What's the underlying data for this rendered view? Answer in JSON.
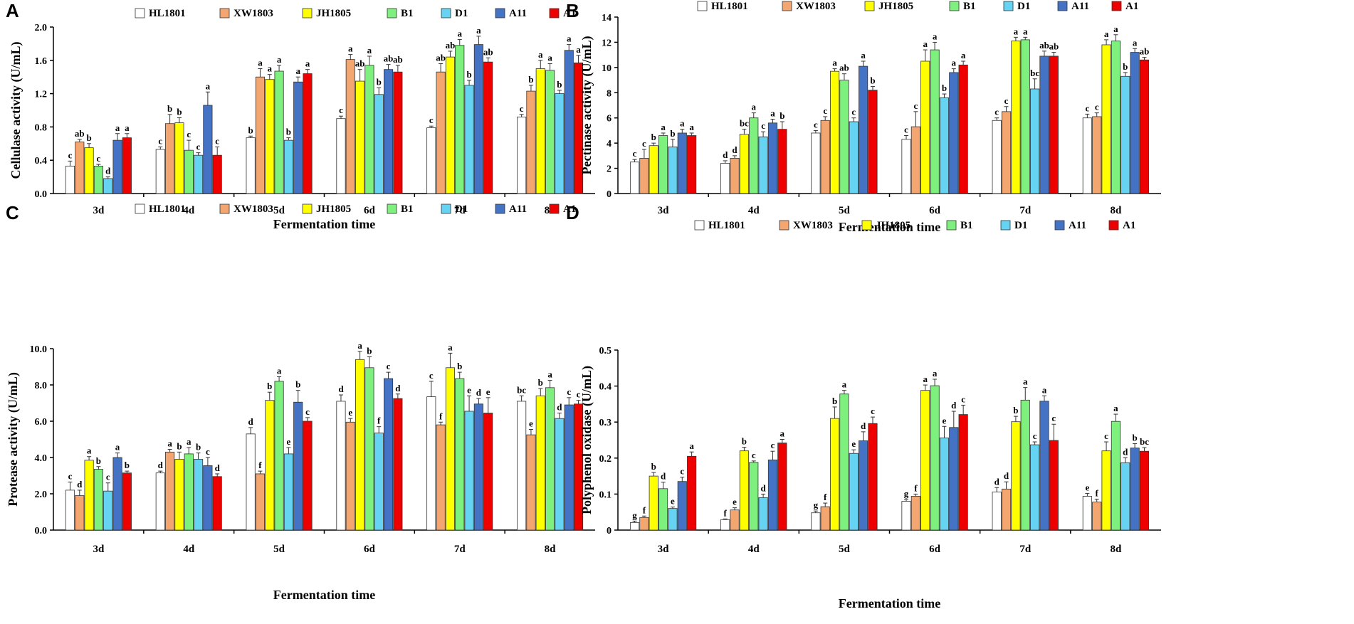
{
  "series_names": [
    "HL1801",
    "XW1803",
    "JH1805",
    "B1",
    "D1",
    "A11",
    "A1"
  ],
  "series_colors": [
    "#ffffff",
    "#f4a671",
    "#ffff00",
    "#7ef07e",
    "#66d3f2",
    "#4472c4",
    "#ee0000"
  ],
  "chart_data": [
    {
      "type": "bar",
      "panel_label": "A",
      "title": "",
      "xlabel": "Fermentation time",
      "ylabel": "Cellulase activity (U/mL)",
      "categories": [
        "3d",
        "4d",
        "5d",
        "6d",
        "7d",
        "8d"
      ],
      "ylim": [
        0,
        2.0
      ],
      "yticks": [
        "0.0",
        "0.4",
        "0.8",
        "1.2",
        "1.6",
        "2.0"
      ],
      "series": [
        {
          "name": "HL1801",
          "values": [
            0.33,
            0.53,
            0.67,
            0.9,
            0.79,
            0.92
          ],
          "errors": [
            0.06,
            0.03,
            0.02,
            0.03,
            0.02,
            0.03
          ],
          "letters": [
            "c",
            "c",
            "b",
            "c",
            "c",
            "c"
          ]
        },
        {
          "name": "XW1803",
          "values": [
            0.62,
            0.84,
            1.4,
            1.61,
            1.46,
            1.23
          ],
          "errors": [
            0.03,
            0.11,
            0.1,
            0.06,
            0.1,
            0.07
          ],
          "letters": [
            "ab",
            "b",
            "a",
            "a",
            "ab",
            "b"
          ]
        },
        {
          "name": "JH1805",
          "values": [
            0.55,
            0.85,
            1.37,
            1.35,
            1.64,
            1.5
          ],
          "errors": [
            0.05,
            0.06,
            0.06,
            0.14,
            0.07,
            0.1
          ],
          "letters": [
            "b",
            "b",
            "a",
            "ab",
            "ab",
            "a"
          ]
        },
        {
          "name": "B1",
          "values": [
            0.33,
            0.52,
            1.47,
            1.54,
            1.78,
            1.48
          ],
          "errors": [
            0.02,
            0.12,
            0.07,
            0.11,
            0.07,
            0.08
          ],
          "letters": [
            "c",
            "c",
            "a",
            "a",
            "a",
            "a"
          ]
        },
        {
          "name": "D1",
          "values": [
            0.18,
            0.46,
            0.64,
            1.19,
            1.3,
            1.2
          ],
          "errors": [
            0.02,
            0.03,
            0.03,
            0.08,
            0.06,
            0.04
          ],
          "letters": [
            "d",
            "c",
            "b",
            "b",
            "b",
            "b"
          ]
        },
        {
          "name": "A11",
          "values": [
            0.64,
            1.06,
            1.34,
            1.49,
            1.79,
            1.72
          ],
          "errors": [
            0.08,
            0.16,
            0.06,
            0.06,
            0.1,
            0.07
          ],
          "letters": [
            "a",
            "a",
            "a",
            "ab",
            "a",
            "a"
          ]
        },
        {
          "name": "A1",
          "values": [
            0.67,
            0.46,
            1.44,
            1.46,
            1.58,
            1.57
          ],
          "errors": [
            0.05,
            0.1,
            0.05,
            0.08,
            0.05,
            0.09
          ],
          "letters": [
            "a",
            "c",
            "a",
            "ab",
            "ab",
            "a"
          ]
        }
      ]
    },
    {
      "type": "bar",
      "panel_label": "B",
      "title": "",
      "xlabel": "Fermentation time",
      "ylabel": "Pectinase activity (U/mL)",
      "categories": [
        "3d",
        "4d",
        "5d",
        "6d",
        "7d",
        "8d"
      ],
      "ylim": [
        0,
        14
      ],
      "yticks": [
        "0",
        "2",
        "4",
        "6",
        "8",
        "10",
        "12",
        "14"
      ],
      "series": [
        {
          "name": "HL1801",
          "values": [
            2.5,
            2.4,
            4.8,
            4.3,
            5.8,
            6.0
          ],
          "errors": [
            0.2,
            0.2,
            0.2,
            0.3,
            0.2,
            0.3
          ],
          "letters": [
            "c",
            "d",
            "c",
            "c",
            "c",
            "c"
          ]
        },
        {
          "name": "XW1803",
          "values": [
            2.8,
            2.8,
            5.8,
            5.3,
            6.5,
            6.1
          ],
          "errors": [
            0.7,
            0.2,
            0.3,
            1.2,
            0.4,
            0.3
          ],
          "letters": [
            "c",
            "d",
            "c",
            "c",
            "c",
            "c"
          ]
        },
        {
          "name": "JH1805",
          "values": [
            3.8,
            4.7,
            9.7,
            10.5,
            12.1,
            11.8
          ],
          "errors": [
            0.2,
            0.4,
            0.2,
            0.9,
            0.3,
            0.4
          ],
          "letters": [
            "b",
            "bc",
            "a",
            "a",
            "a",
            "a"
          ]
        },
        {
          "name": "B1",
          "values": [
            4.6,
            6.0,
            9.0,
            11.4,
            12.2,
            12.1
          ],
          "errors": [
            0.2,
            0.4,
            0.5,
            0.6,
            0.2,
            0.5
          ],
          "letters": [
            "a",
            "a",
            "ab",
            "a",
            "a",
            "a"
          ]
        },
        {
          "name": "D1",
          "values": [
            3.7,
            4.5,
            5.7,
            7.6,
            8.3,
            9.3
          ],
          "errors": [
            0.6,
            0.4,
            0.3,
            0.3,
            0.8,
            0.3
          ],
          "letters": [
            "b",
            "c",
            "c",
            "b",
            "bc",
            "b"
          ]
        },
        {
          "name": "A11",
          "values": [
            4.8,
            5.6,
            10.1,
            9.6,
            10.9,
            11.2
          ],
          "errors": [
            0.3,
            0.3,
            0.4,
            0.3,
            0.4,
            0.3
          ],
          "letters": [
            "a",
            "a",
            "a",
            "a",
            "ab",
            "a"
          ]
        },
        {
          "name": "A1",
          "values": [
            4.6,
            5.1,
            8.2,
            10.2,
            10.9,
            10.6
          ],
          "errors": [
            0.2,
            0.6,
            0.3,
            0.3,
            0.3,
            0.2
          ],
          "letters": [
            "a",
            "b",
            "b",
            "a",
            "ab",
            "ab"
          ]
        }
      ]
    },
    {
      "type": "bar",
      "panel_label": "C",
      "title": "",
      "xlabel": "Fermentation time",
      "ylabel": "Protease activity (U/mL)",
      "categories": [
        "3d",
        "4d",
        "5d",
        "6d",
        "7d",
        "8d"
      ],
      "ylim": [
        0,
        10
      ],
      "yticks": [
        "0.0",
        "2.0",
        "4.0",
        "6.0",
        "8.0",
        "10.0"
      ],
      "series": [
        {
          "name": "HL1801",
          "values": [
            2.2,
            3.15,
            5.3,
            7.1,
            7.35,
            7.1
          ],
          "errors": [
            0.45,
            0.1,
            0.35,
            0.35,
            0.85,
            0.3
          ],
          "letters": [
            "c",
            "d",
            "d",
            "d",
            "c",
            "bc"
          ]
        },
        {
          "name": "XW1803",
          "values": [
            1.9,
            4.3,
            3.1,
            5.95,
            5.8,
            5.25
          ],
          "errors": [
            0.3,
            0.15,
            0.15,
            0.2,
            0.15,
            0.3
          ],
          "letters": [
            "d",
            "a",
            "f",
            "e",
            "f",
            "e"
          ]
        },
        {
          "name": "JH1805",
          "values": [
            3.85,
            3.9,
            7.15,
            9.4,
            8.95,
            7.4
          ],
          "errors": [
            0.2,
            0.4,
            0.45,
            0.45,
            0.8,
            0.4
          ],
          "letters": [
            "a",
            "b",
            "b",
            "a",
            "a",
            "b"
          ]
        },
        {
          "name": "B1",
          "values": [
            3.35,
            4.2,
            8.2,
            8.95,
            8.35,
            7.85
          ],
          "errors": [
            0.15,
            0.35,
            0.25,
            0.6,
            0.35,
            0.4
          ],
          "letters": [
            "b",
            "a",
            "a",
            "b",
            "b",
            "a"
          ]
        },
        {
          "name": "D1",
          "values": [
            2.15,
            3.9,
            4.2,
            5.35,
            6.55,
            6.15
          ],
          "errors": [
            0.45,
            0.35,
            0.35,
            0.35,
            0.85,
            0.3
          ],
          "letters": [
            "c",
            "b",
            "e",
            "f",
            "e",
            "d"
          ]
        },
        {
          "name": "A11",
          "values": [
            4.0,
            3.55,
            7.05,
            8.35,
            6.95,
            6.9
          ],
          "errors": [
            0.25,
            0.45,
            0.65,
            0.35,
            0.3,
            0.4
          ],
          "letters": [
            "a",
            "c",
            "b",
            "c",
            "d",
            "c"
          ]
        },
        {
          "name": "A1",
          "values": [
            3.15,
            2.95,
            6.0,
            7.25,
            6.45,
            6.95
          ],
          "errors": [
            0.1,
            0.15,
            0.2,
            0.25,
            0.85,
            0.2
          ],
          "letters": [
            "b",
            "d",
            "c",
            "d",
            "e",
            "c"
          ]
        }
      ]
    },
    {
      "type": "bar",
      "panel_label": "D",
      "title": "",
      "xlabel": "Fermentation time",
      "ylabel": "Polyphenol oxidase (U/mL)",
      "categories": [
        "3d",
        "4d",
        "5d",
        "6d",
        "7d",
        "8d"
      ],
      "ylim": [
        0,
        0.5
      ],
      "yticks": [
        "0",
        "0.1",
        "0.2",
        "0.3",
        "0.4",
        "0.5"
      ],
      "series": [
        {
          "name": "HL1801",
          "values": [
            0.021,
            0.029,
            0.048,
            0.08,
            0.106,
            0.094
          ],
          "errors": [
            0.004,
            0.002,
            0.005,
            0.005,
            0.012,
            0.008
          ],
          "letters": [
            "g",
            "f",
            "g",
            "g",
            "d",
            "e"
          ]
        },
        {
          "name": "XW1803",
          "values": [
            0.035,
            0.056,
            0.065,
            0.094,
            0.114,
            0.078
          ],
          "errors": [
            0.004,
            0.006,
            0.01,
            0.006,
            0.02,
            0.008
          ],
          "letters": [
            "f",
            "e",
            "f",
            "f",
            "d",
            "f"
          ]
        },
        {
          "name": "JH1805",
          "values": [
            0.15,
            0.22,
            0.31,
            0.388,
            0.301,
            0.22
          ],
          "errors": [
            0.01,
            0.01,
            0.032,
            0.015,
            0.015,
            0.025
          ],
          "letters": [
            "b",
            "b",
            "b",
            "a",
            "b",
            "c"
          ]
        },
        {
          "name": "B1",
          "values": [
            0.115,
            0.188,
            0.378,
            0.401,
            0.361,
            0.302
          ],
          "errors": [
            0.018,
            0.004,
            0.01,
            0.018,
            0.035,
            0.02
          ],
          "letters": [
            "d",
            "c",
            "a",
            "a",
            "a",
            "a"
          ]
        },
        {
          "name": "D1",
          "values": [
            0.06,
            0.09,
            0.213,
            0.256,
            0.237,
            0.187
          ],
          "errors": [
            0.004,
            0.01,
            0.01,
            0.032,
            0.008,
            0.014
          ],
          "letters": [
            "e",
            "d",
            "e",
            "e",
            "c",
            "d"
          ]
        },
        {
          "name": "A11",
          "values": [
            0.135,
            0.195,
            0.248,
            0.285,
            0.358,
            0.228
          ],
          "errors": [
            0.012,
            0.024,
            0.025,
            0.045,
            0.015,
            0.012
          ],
          "letters": [
            "c",
            "c",
            "d",
            "d",
            "a",
            "b"
          ]
        },
        {
          "name": "A1",
          "values": [
            0.205,
            0.242,
            0.296,
            0.321,
            0.249,
            0.219
          ],
          "errors": [
            0.012,
            0.01,
            0.018,
            0.026,
            0.045,
            0.01
          ],
          "letters": [
            "a",
            "a",
            "c",
            "c",
            "c",
            "bc"
          ]
        }
      ]
    }
  ]
}
